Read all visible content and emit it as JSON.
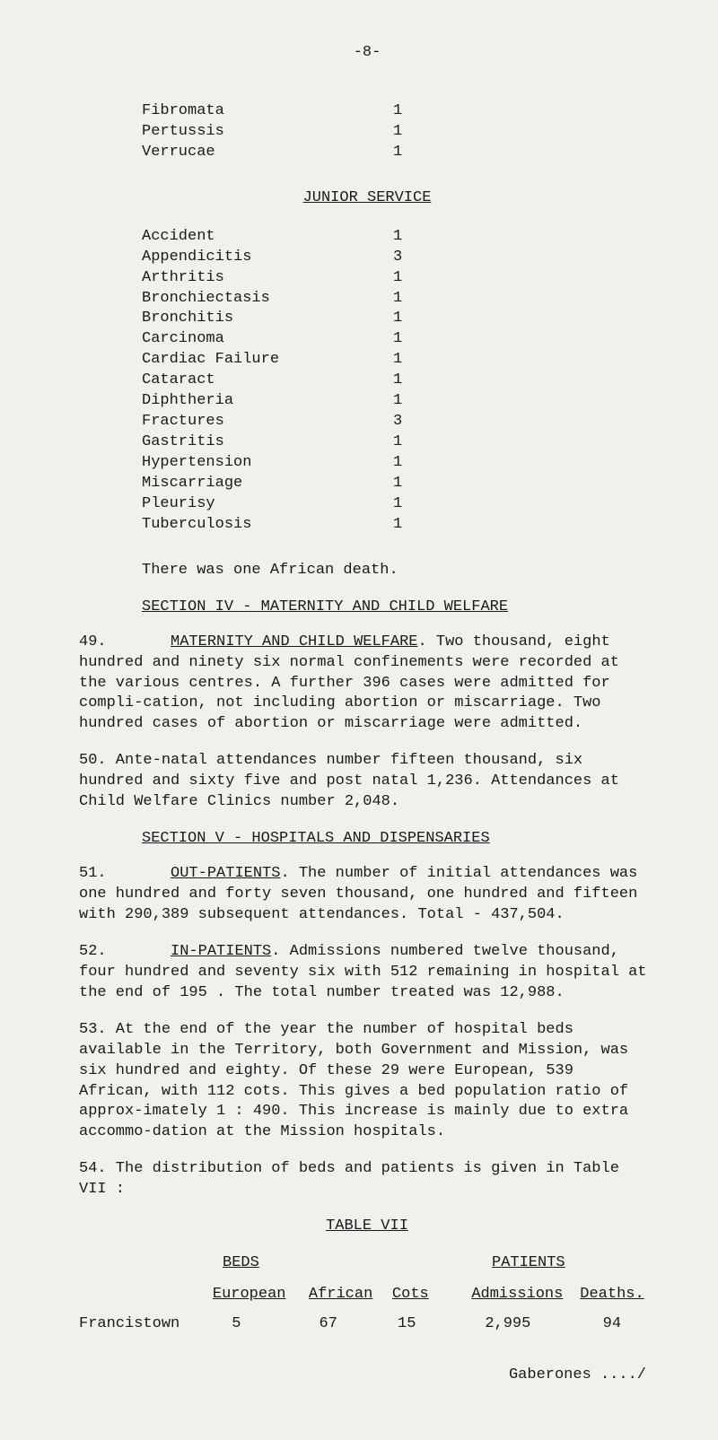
{
  "page_number": "-8-",
  "top_conditions": [
    {
      "label": "Fibromata",
      "value": "1"
    },
    {
      "label": "Pertussis",
      "value": "1"
    },
    {
      "label": "Verrucae",
      "value": "1"
    }
  ],
  "junior_heading": "JUNIOR SERVICE",
  "junior_conditions": [
    {
      "label": "Accident",
      "value": "1"
    },
    {
      "label": "Appendicitis",
      "value": "3"
    },
    {
      "label": "Arthritis",
      "value": "1"
    },
    {
      "label": "Bronchiectasis",
      "value": "1"
    },
    {
      "label": "Bronchitis",
      "value": "1"
    },
    {
      "label": "Carcinoma",
      "value": "1"
    },
    {
      "label": "Cardiac Failure",
      "value": "1"
    },
    {
      "label": "Cataract",
      "value": "1"
    },
    {
      "label": "Diphtheria",
      "value": "1"
    },
    {
      "label": "Fractures",
      "value": "3"
    },
    {
      "label": "Gastritis",
      "value": "1"
    },
    {
      "label": "Hypertension",
      "value": "1"
    },
    {
      "label": "Miscarriage",
      "value": "1"
    },
    {
      "label": "Pleurisy",
      "value": "1"
    },
    {
      "label": "Tuberculosis",
      "value": "1"
    }
  ],
  "junior_note": "There was one African death.",
  "section4_heading": "SECTION IV - MATERNITY AND CHILD WELFARE",
  "para49_num": "49.",
  "para49_lead": "MATERNITY AND CHILD WELFARE",
  "para49_rest": ".   Two thousand, eight hundred and ninety six normal confinements were recorded at the various centres.   A further 396 cases were admitted for compli-cation, not including abortion or  miscarriage.    Two hundred cases of abortion or miscarriage were admitted.",
  "para50": "50.       Ante-natal attendances number fifteen thousand, six hundred and sixty five and post natal 1,236.   Attendances at Child Welfare Clinics number 2,048.",
  "section5_heading": "SECTION V - HOSPITALS AND DISPENSARIES",
  "para51_num": "51.",
  "para51_lead": "OUT-PATIENTS",
  "para51_rest": ".   The number of initial attendances was one hundred and forty seven thousand, one hundred and fifteen with 290,389 subsequent attendances.    Total - 437,504.",
  "para52_num": "52.",
  "para52_lead": "IN-PATIENTS",
  "para52_rest": ".   Admissions numbered twelve thousand, four hundred and seventy six with 512 remaining in hospital at the end of 195 .   The total number treated was 12,988.",
  "para53": "53.       At the end of the year the number of hospital beds available in the Territory, both Government and Mission, was six hundred and eighty.   Of these 29 were European, 539 African, with 112 cots.    This gives a bed population ratio  of approx-imately 1 : 490.    This increase is mainly due to extra accommo-dation at the Mission hospitals.",
  "para54": "54.       The distribution of beds and patients is given in Table VII :",
  "table": {
    "title": "TABLE VII",
    "group_beds": "BEDS",
    "group_patients": "PATIENTS",
    "cols": {
      "european": "European",
      "african": "African",
      "cots": "Cots",
      "admissions": "Admissions",
      "deaths": "Deaths."
    },
    "row": {
      "label": "Francistown",
      "european": "5",
      "african": "67",
      "cots": "15",
      "admissions": "2,995",
      "deaths": "94"
    }
  },
  "footer": "Gaberones ..../"
}
